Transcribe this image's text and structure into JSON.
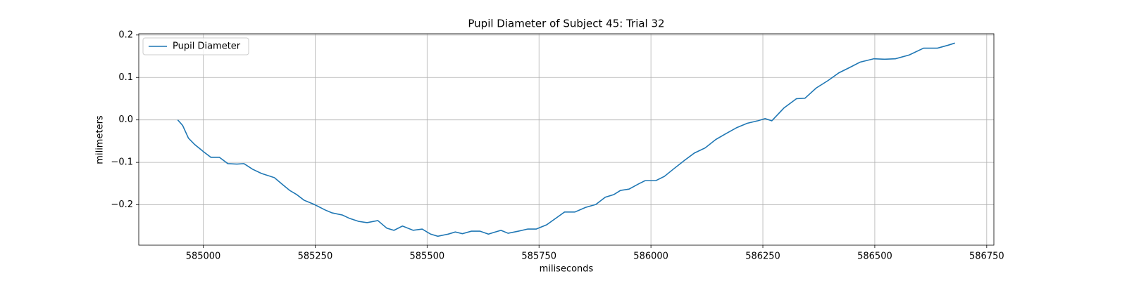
{
  "chart_data": {
    "type": "line",
    "title": "Pupil Diameter of Subject 45: Trial 32",
    "x_label": "miliseconds",
    "y_label": "milimeters",
    "x": [
      584943,
      584954,
      584967,
      584981,
      585002,
      585017,
      585036,
      585055,
      585075,
      585091,
      585110,
      585130,
      585159,
      585178,
      585193,
      585209,
      585225,
      585248,
      585272,
      585288,
      585311,
      585327,
      585347,
      585366,
      585390,
      585410,
      585426,
      585445,
      585469,
      585489,
      585508,
      585524,
      585547,
      585563,
      585579,
      585599,
      585618,
      585637,
      585649,
      585665,
      585681,
      585704,
      585725,
      585744,
      585767,
      585791,
      585807,
      585830,
      585854,
      585877,
      585898,
      585917,
      585932,
      585951,
      585972,
      585987,
      586011,
      586030,
      586050,
      586074,
      586097,
      586121,
      586145,
      586168,
      586192,
      586215,
      586239,
      586255,
      586270,
      586297,
      586325,
      586344,
      586369,
      586396,
      586420,
      586443,
      586467,
      586498,
      586522,
      586546,
      586577,
      586609,
      586640,
      586664,
      586679
    ],
    "series": [
      {
        "name": "Pupil Diameter",
        "color": "#1f77b4",
        "values": [
          0.0,
          -0.013,
          -0.043,
          -0.058,
          -0.076,
          -0.088,
          -0.088,
          -0.103,
          -0.104,
          -0.103,
          -0.116,
          -0.126,
          -0.136,
          -0.153,
          -0.166,
          -0.176,
          -0.189,
          -0.199,
          -0.212,
          -0.219,
          -0.224,
          -0.232,
          -0.239,
          -0.242,
          -0.237,
          -0.255,
          -0.26,
          -0.25,
          -0.26,
          -0.257,
          -0.269,
          -0.274,
          -0.269,
          -0.264,
          -0.268,
          -0.262,
          -0.262,
          -0.269,
          -0.265,
          -0.26,
          -0.267,
          -0.262,
          -0.257,
          -0.257,
          -0.247,
          -0.229,
          -0.217,
          -0.217,
          -0.206,
          -0.199,
          -0.182,
          -0.176,
          -0.166,
          -0.163,
          -0.151,
          -0.143,
          -0.143,
          -0.133,
          -0.116,
          -0.096,
          -0.078,
          -0.066,
          -0.046,
          -0.032,
          -0.018,
          -0.008,
          -0.002,
          0.003,
          -0.002,
          0.028,
          0.05,
          0.051,
          0.075,
          0.093,
          0.111,
          0.123,
          0.136,
          0.144,
          0.143,
          0.144,
          0.153,
          0.169,
          0.169,
          0.176,
          0.181
        ]
      }
    ],
    "xlim": [
      584856,
      586766
    ],
    "ylim": [
      -0.295,
      0.203
    ],
    "xticks": [
      585000,
      585250,
      585500,
      585750,
      586000,
      586250,
      586500,
      586750
    ],
    "yticks": [
      {
        "value": -0.2,
        "label": "−0.2"
      },
      {
        "value": -0.1,
        "label": "−0.1"
      },
      {
        "value": 0.0,
        "label": "0.0"
      },
      0.1,
      0.2
    ],
    "grid": true,
    "legend": "upper-left"
  }
}
